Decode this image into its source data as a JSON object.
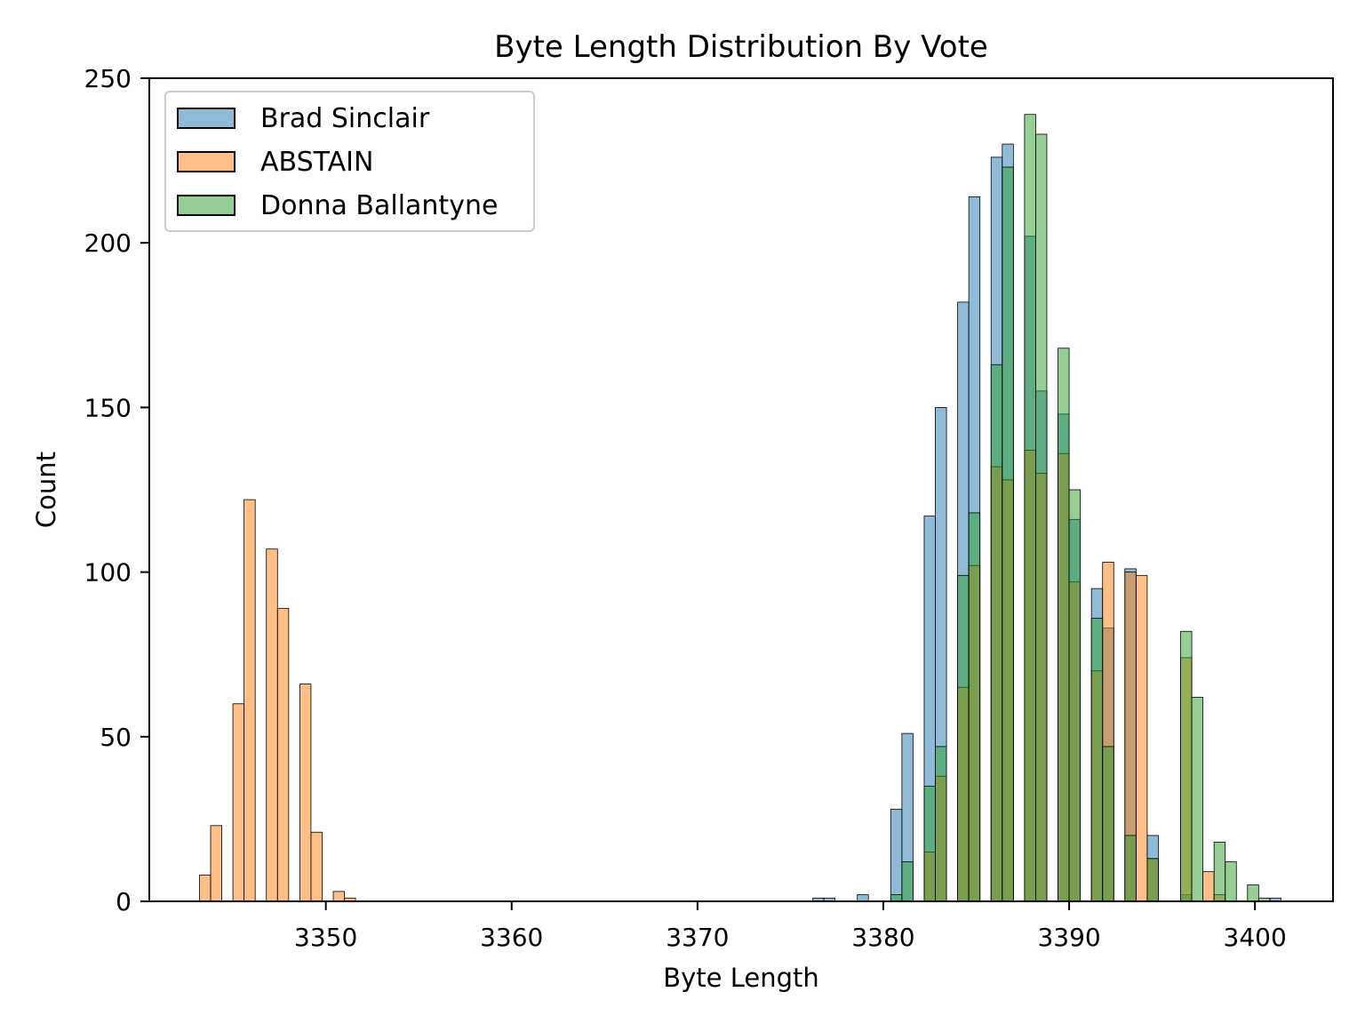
{
  "chart_data": {
    "type": "histogram",
    "title": "Byte Length Distribution By Vote",
    "xlabel": "Byte Length",
    "ylabel": "Count",
    "xlim": [
      3340.5,
      3404.2
    ],
    "ylim": [
      0,
      250
    ],
    "xticks": [
      3350,
      3360,
      3370,
      3380,
      3390,
      3400
    ],
    "yticks": [
      0,
      50,
      100,
      150,
      200,
      250
    ],
    "bin_width": 0.6,
    "grid": false,
    "legend_position": "top-left",
    "series": [
      {
        "name": "Brad Sinclair",
        "color": "#1f77b4",
        "x": [
          3376.2,
          3376.8,
          3378.6,
          3380.4,
          3381.0,
          3382.2,
          3382.8,
          3384.0,
          3384.6,
          3385.8,
          3386.4,
          3387.6,
          3388.2,
          3389.4,
          3390.0,
          3391.2,
          3391.8,
          3393.0,
          3394.2,
          3396.0,
          3400.8
        ],
        "values": [
          1,
          1,
          2,
          28,
          51,
          117,
          150,
          182,
          214,
          226,
          230,
          202,
          155,
          148,
          116,
          95,
          83,
          101,
          20,
          2,
          1
        ]
      },
      {
        "name": "ABSTAIN",
        "color": "#ff7f0e",
        "x": [
          3343.2,
          3343.8,
          3345.0,
          3345.6,
          3346.8,
          3347.4,
          3348.6,
          3349.2,
          3350.4,
          3351.0,
          3382.2,
          3382.8,
          3384.0,
          3384.6,
          3385.8,
          3386.4,
          3387.6,
          3388.2,
          3389.4,
          3390.0,
          3391.2,
          3391.8,
          3393.0,
          3393.6,
          3394.2,
          3396.0,
          3397.2,
          3397.8
        ],
        "values": [
          8,
          23,
          60,
          122,
          107,
          89,
          66,
          21,
          3,
          1,
          15,
          38,
          65,
          102,
          132,
          128,
          137,
          130,
          136,
          97,
          70,
          103,
          100,
          99,
          13,
          74,
          9,
          2
        ]
      },
      {
        "name": "Donna Ballantyne",
        "color": "#2ca02c",
        "x": [
          3380.4,
          3381.0,
          3382.2,
          3382.8,
          3384.0,
          3384.6,
          3385.8,
          3386.4,
          3387.6,
          3388.2,
          3389.4,
          3390.0,
          3391.2,
          3391.8,
          3393.0,
          3394.2,
          3396.0,
          3396.6,
          3397.8,
          3398.4,
          3399.6,
          3400.2
        ],
        "values": [
          2,
          12,
          35,
          47,
          99,
          118,
          163,
          223,
          239,
          233,
          168,
          125,
          86,
          47,
          20,
          13,
          82,
          62,
          18,
          12,
          5,
          1
        ]
      }
    ]
  }
}
